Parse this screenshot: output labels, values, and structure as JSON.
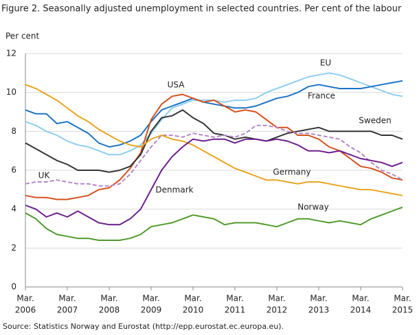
{
  "chart_data": {
    "type": "line",
    "title": "Figure 2. Seasonally adjusted unemployment in selected countries. Per cent of the labour",
    "y_label": "Per cent",
    "source": "Source: Statistics Norway and Eurostat (http://epp.eurostat.ec.europa.eu).",
    "x": [
      "2006-03",
      "2006-06",
      "2006-09",
      "2006-12",
      "2007-03",
      "2007-06",
      "2007-09",
      "2007-12",
      "2008-03",
      "2008-06",
      "2008-09",
      "2008-12",
      "2009-03",
      "2009-06",
      "2009-09",
      "2009-12",
      "2010-03",
      "2010-06",
      "2010-09",
      "2010-12",
      "2011-03",
      "2011-06",
      "2011-09",
      "2011-12",
      "2012-03",
      "2012-06",
      "2012-09",
      "2012-12",
      "2013-03",
      "2013-06",
      "2013-09",
      "2013-12",
      "2014-03",
      "2014-06",
      "2014-09",
      "2014-12",
      "2015-03"
    ],
    "xticks": [
      {
        "value": "2006-03",
        "label": [
          "Mar.",
          "2006"
        ]
      },
      {
        "value": "2007-03",
        "label": [
          "Mar.",
          "2007"
        ]
      },
      {
        "value": "2008-03",
        "label": [
          "Mar.",
          "2008"
        ]
      },
      {
        "value": "2009-03",
        "label": [
          "Mar.",
          "2009"
        ]
      },
      {
        "value": "2010-03",
        "label": [
          "Mar.",
          "2010"
        ]
      },
      {
        "value": "2011-03",
        "label": [
          "Mar.",
          "2011"
        ]
      },
      {
        "value": "2012-03",
        "label": [
          "Mar.",
          "2012"
        ]
      },
      {
        "value": "2013-03",
        "label": [
          "Mar.",
          "2013"
        ]
      },
      {
        "value": "2014-03",
        "label": [
          "Mar.",
          "2014"
        ]
      },
      {
        "value": "2015-03",
        "label": [
          "Mar.",
          "2015"
        ]
      }
    ],
    "ylim": [
      0,
      12
    ],
    "yticks": [
      0,
      2,
      4,
      6,
      8,
      10,
      12
    ],
    "grid": true,
    "series": [
      {
        "name": "EU",
        "color": "#8dcdf0",
        "values": [
          8.5,
          8.3,
          8.0,
          7.8,
          7.5,
          7.3,
          7.2,
          7.0,
          6.8,
          6.8,
          7.0,
          7.3,
          7.9,
          8.6,
          9.2,
          9.4,
          9.6,
          9.6,
          9.6,
          9.5,
          9.6,
          9.6,
          9.7,
          10.0,
          10.2,
          10.4,
          10.6,
          10.8,
          10.9,
          11.0,
          10.9,
          10.7,
          10.5,
          10.3,
          10.1,
          9.9,
          9.8
        ]
      },
      {
        "name": "France",
        "color": "#1b72c4",
        "values": [
          9.1,
          8.9,
          8.9,
          8.4,
          8.5,
          8.2,
          7.9,
          7.4,
          7.2,
          7.3,
          7.5,
          7.8,
          8.5,
          9.1,
          9.3,
          9.5,
          9.7,
          9.5,
          9.4,
          9.3,
          9.2,
          9.2,
          9.3,
          9.5,
          9.7,
          9.8,
          10.0,
          10.3,
          10.4,
          10.3,
          10.2,
          10.2,
          10.2,
          10.3,
          10.4,
          10.5,
          10.6
        ]
      },
      {
        "name": "USA",
        "color": "#d4501b",
        "values": [
          4.7,
          4.6,
          4.6,
          4.5,
          4.5,
          4.6,
          4.7,
          5.0,
          5.1,
          5.5,
          6.1,
          6.9,
          8.6,
          9.4,
          9.8,
          9.9,
          9.7,
          9.5,
          9.6,
          9.3,
          9.0,
          9.1,
          9.0,
          8.6,
          8.2,
          8.2,
          7.8,
          7.8,
          7.6,
          7.2,
          7.0,
          6.6,
          6.2,
          6.1,
          5.9,
          5.6,
          5.5
        ]
      },
      {
        "name": "Sweden",
        "color": "#333333",
        "values": [
          7.4,
          7.1,
          6.8,
          6.5,
          6.3,
          6.0,
          6.0,
          6.0,
          5.9,
          6.0,
          6.2,
          6.8,
          8.0,
          8.7,
          8.8,
          9.1,
          8.7,
          8.4,
          7.9,
          7.8,
          7.6,
          7.7,
          7.6,
          7.5,
          7.7,
          7.9,
          8.0,
          8.1,
          8.2,
          8.0,
          8.0,
          8.0,
          8.0,
          8.0,
          7.8,
          7.8,
          7.6
        ]
      },
      {
        "name": "UK",
        "color": "#b485c9",
        "dashed": true,
        "values": [
          5.3,
          5.4,
          5.4,
          5.5,
          5.4,
          5.3,
          5.3,
          5.2,
          5.2,
          5.3,
          5.8,
          6.5,
          7.2,
          7.8,
          7.8,
          7.7,
          7.9,
          7.8,
          7.7,
          7.8,
          7.7,
          7.9,
          8.3,
          8.3,
          8.2,
          8.0,
          7.9,
          7.9,
          7.8,
          7.7,
          7.6,
          7.2,
          6.9,
          6.4,
          6.0,
          5.8,
          5.5
        ]
      },
      {
        "name": "Germany",
        "color": "#e9a31e",
        "values": [
          10.4,
          10.2,
          9.9,
          9.6,
          9.2,
          8.8,
          8.5,
          8.1,
          7.8,
          7.5,
          7.3,
          7.2,
          7.6,
          7.8,
          7.6,
          7.5,
          7.3,
          7.0,
          6.7,
          6.4,
          6.1,
          5.9,
          5.7,
          5.5,
          5.5,
          5.4,
          5.3,
          5.4,
          5.4,
          5.3,
          5.2,
          5.1,
          5.0,
          5.0,
          4.9,
          4.8,
          4.7
        ]
      },
      {
        "name": "Denmark",
        "color": "#6b1d8c",
        "values": [
          4.2,
          4.0,
          3.6,
          3.8,
          3.6,
          3.9,
          3.6,
          3.3,
          3.2,
          3.2,
          3.5,
          4.0,
          5.0,
          6.0,
          6.7,
          7.2,
          7.6,
          7.5,
          7.6,
          7.6,
          7.4,
          7.6,
          7.6,
          7.5,
          7.6,
          7.5,
          7.3,
          7.0,
          7.0,
          6.9,
          7.0,
          6.8,
          6.6,
          6.5,
          6.4,
          6.2,
          6.4
        ]
      },
      {
        "name": "Norway",
        "color": "#4f9a2b",
        "values": [
          3.8,
          3.5,
          3.0,
          2.7,
          2.6,
          2.5,
          2.5,
          2.4,
          2.4,
          2.4,
          2.5,
          2.7,
          3.1,
          3.2,
          3.3,
          3.5,
          3.7,
          3.6,
          3.5,
          3.2,
          3.3,
          3.3,
          3.3,
          3.2,
          3.1,
          3.3,
          3.5,
          3.5,
          3.4,
          3.3,
          3.4,
          3.3,
          3.2,
          3.5,
          3.7,
          3.9,
          4.1
        ]
      }
    ]
  }
}
